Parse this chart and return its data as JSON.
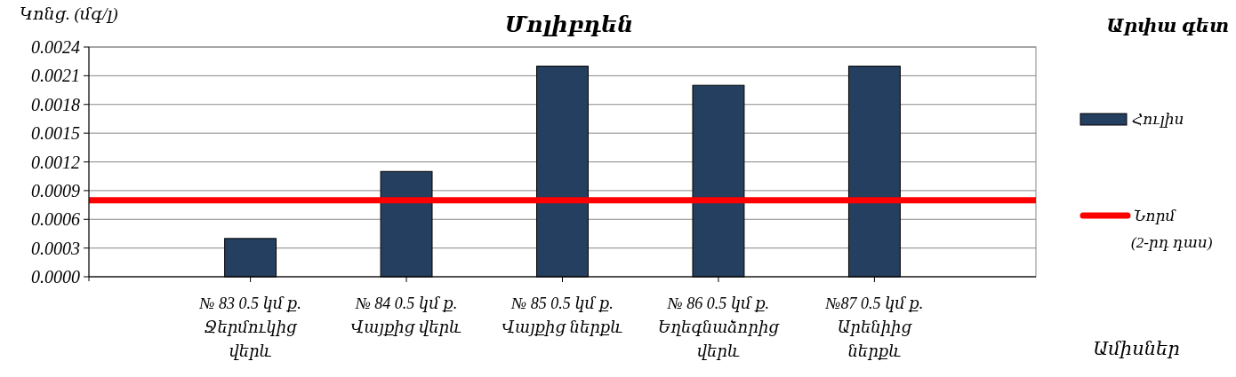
{
  "chart_data": {
    "type": "bar",
    "title": "Մոլիբդեն",
    "subtitle": "Արփա գետ",
    "xlabel": "Ամիսներ",
    "ylabel": "Կոնց. (մգ/լ)",
    "categories": [
      "№ 83 0.5 կմ ք.\nՋերմուկից\nվերև",
      "№ 84 0.5 կմ ք.\nՎայքից վերև",
      "№ 85 0.5 կմ ք.\nՎայքից ներքև",
      "№ 86 0.5 կմ ք.\nԵղեգնաձորից\nվերև",
      "№87 0.5 կմ ք.\nԱրենիից\nներքև"
    ],
    "series": [
      {
        "name": "Հուլիս",
        "color": "#243f60",
        "values": [
          0.0004,
          0.0011,
          0.0022,
          0.002,
          0.0022
        ]
      }
    ],
    "ylim": [
      0,
      0.0024
    ],
    "yticks": [
      {
        "value": 0,
        "label": "0.0000"
      },
      0.0003,
      0.0006,
      0.0009,
      0.0012,
      0.0015,
      0.0018,
      0.0021,
      0.0024
    ],
    "ref_lines": [
      {
        "axis": "y",
        "value": 0.0008,
        "label": "Նորմ\n(2-րդ դաս)",
        "color": "#ff0000"
      }
    ],
    "grid": "y",
    "legend": "right"
  }
}
